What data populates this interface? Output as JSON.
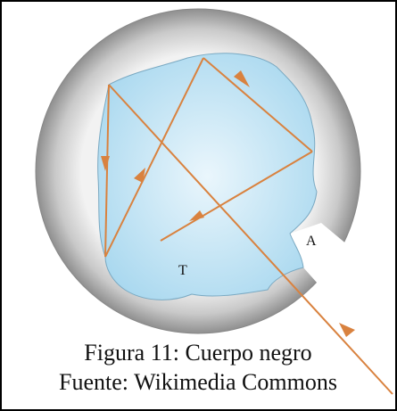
{
  "figure": {
    "labels": {
      "opening": "A",
      "cavity": "T"
    },
    "caption": [
      "Figura 11: Cuerpo negro",
      "Fuente: Wikimedia Commons"
    ]
  }
}
